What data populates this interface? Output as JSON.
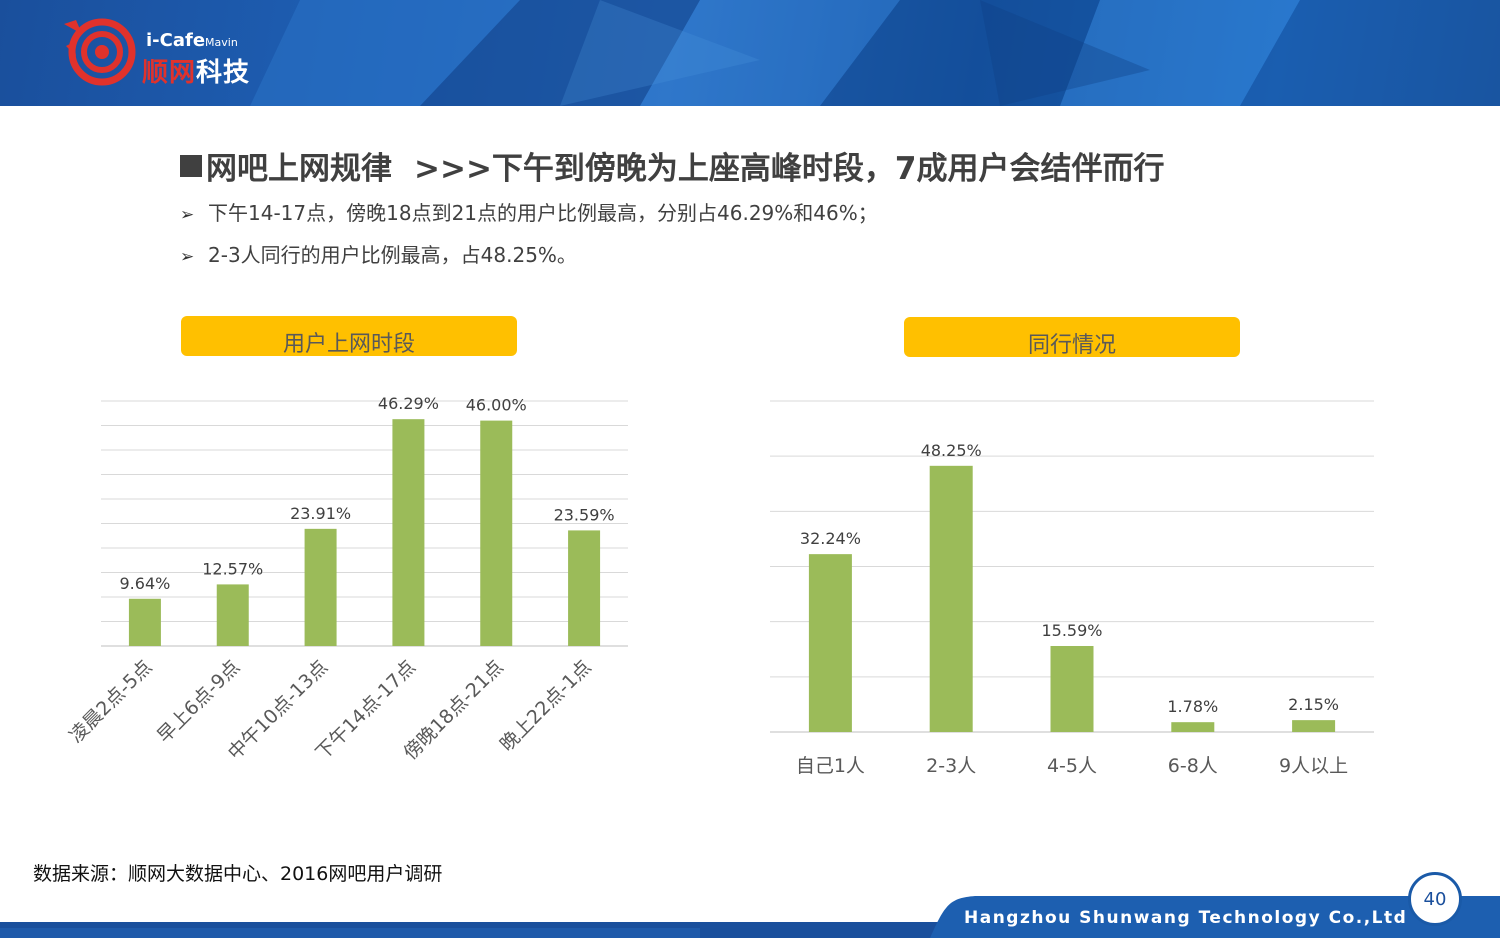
{
  "header": {
    "logo_en": "i-Cafe",
    "logo_en_small": "Mavin",
    "logo_cn_part1": "顺网",
    "logo_cn_part2": "科技"
  },
  "slide": {
    "title_part1": "网吧上网规律",
    "title_part2": ">>>下午到傍晚为上座高峰时段，7成用户会结伴而行",
    "bullet_marker": "➢",
    "bullets": [
      "下午14-17点，傍晚18点到21点的用户比例最高，分别占46.29%和46%；",
      "2-3人同行的用户比例最高，占48.25%。"
    ]
  },
  "chart_data": [
    {
      "type": "bar",
      "title": "用户上网时段",
      "categories": [
        "凌晨2点-5点",
        "早上6点-9点",
        "中午10点-13点",
        "下午14点-17点",
        "傍晚18点-21点",
        "晚上22点-1点"
      ],
      "values": [
        9.64,
        12.57,
        23.91,
        46.29,
        46.0,
        23.59
      ],
      "data_labels": [
        "9.64%",
        "12.57%",
        "23.91%",
        "46.29%",
        "46.00%",
        "23.59%"
      ],
      "ylim": [
        0,
        50
      ],
      "grid": true,
      "bar_color": "#9bbb59"
    },
    {
      "type": "bar",
      "title": "同行情况",
      "categories": [
        "自己1人",
        "2-3人",
        "4-5人",
        "6-8人",
        "9人以上"
      ],
      "values": [
        32.24,
        48.25,
        15.59,
        1.78,
        2.15
      ],
      "data_labels": [
        "32.24%",
        "48.25%",
        "15.59%",
        "1.78%",
        "2.15%"
      ],
      "ylim": [
        0,
        60
      ],
      "grid": true,
      "bar_color": "#9bbb59"
    }
  ],
  "footer": {
    "source": "数据来源：顺网大数据中心、2016网吧用户调研",
    "company": "Hangzhou Shunwang Technology Co.,Ltd",
    "page_number": "40"
  },
  "colors": {
    "banner_blue": "#1a5aa8",
    "accent_red": "#e0322c",
    "pill_yellow": "#ffc000",
    "bar_green": "#9bbb59",
    "grid_gray": "#d9d9d9"
  }
}
